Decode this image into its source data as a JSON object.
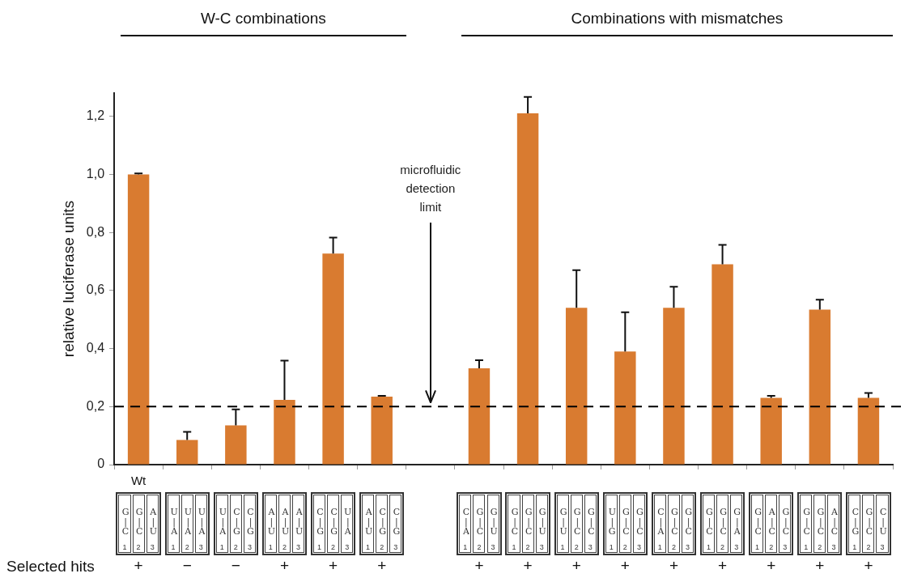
{
  "chart_data": {
    "type": "bar",
    "ylabel": "relative luciferase units",
    "categories": [
      "G|C G|C A|U",
      "U|A U|A U|A",
      "U|A C|G C|G",
      "A|U A|U A|U",
      "C|G C|G U|A",
      "A|U C|G C|G",
      null,
      "C|A G|C G|U",
      "G|C G|C G|U",
      "G|U G|C G|C",
      "U|G G|C G|C",
      "C|A G|C G|C",
      "G|C G|C G|A",
      "G|C A|C G|C",
      "G|C G|C A|C",
      "C|G G|C C|U"
    ],
    "values": [
      1.0,
      0.085,
      0.135,
      0.223,
      0.727,
      0.234,
      null,
      0.332,
      1.21,
      0.54,
      0.39,
      0.54,
      0.69,
      0.23,
      0.534,
      0.23
    ],
    "errors": [
      [
        1.0,
        1.003
      ],
      [
        0.085,
        0.113
      ],
      [
        0.135,
        0.19
      ],
      [
        0.223,
        0.358
      ],
      [
        0.727,
        0.782
      ],
      [
        0.234,
        0.237
      ],
      null,
      [
        0.332,
        0.36
      ],
      [
        1.21,
        1.267
      ],
      [
        0.54,
        0.67
      ],
      [
        0.39,
        0.525
      ],
      [
        0.54,
        0.613
      ],
      [
        0.69,
        0.757
      ],
      [
        0.23,
        0.237
      ],
      [
        0.534,
        0.568
      ],
      [
        0.23,
        0.247
      ]
    ],
    "color": "#d97b30",
    "ylim": [
      0,
      1.28
    ],
    "yticks": [
      0,
      {
        "value": 0.2,
        "label": "0,2"
      },
      {
        "value": 0.4,
        "label": "0,4"
      },
      {
        "value": 0.6,
        "label": "0,6"
      },
      {
        "value": 0.8,
        "label": "0,8"
      },
      {
        "value": 1.0,
        "label": "1,0"
      },
      {
        "value": 1.2,
        "label": "1,2"
      }
    ],
    "ref_lines": [
      {
        "axis": "y",
        "value": 0.2,
        "label": "microfluidic detection limit",
        "color": "#000000",
        "line_style": "dashed"
      }
    ],
    "annotations": [
      "W-C combinations",
      "Combinations with mismatches",
      "Selected hits",
      "+",
      "−",
      "−",
      "+",
      "+",
      "+",
      "+",
      "+",
      "+",
      "+",
      "+",
      "+",
      "+",
      "+",
      "+",
      "Wt",
      "1",
      "2",
      "3"
    ],
    "grid": false,
    "legend": false
  }
}
